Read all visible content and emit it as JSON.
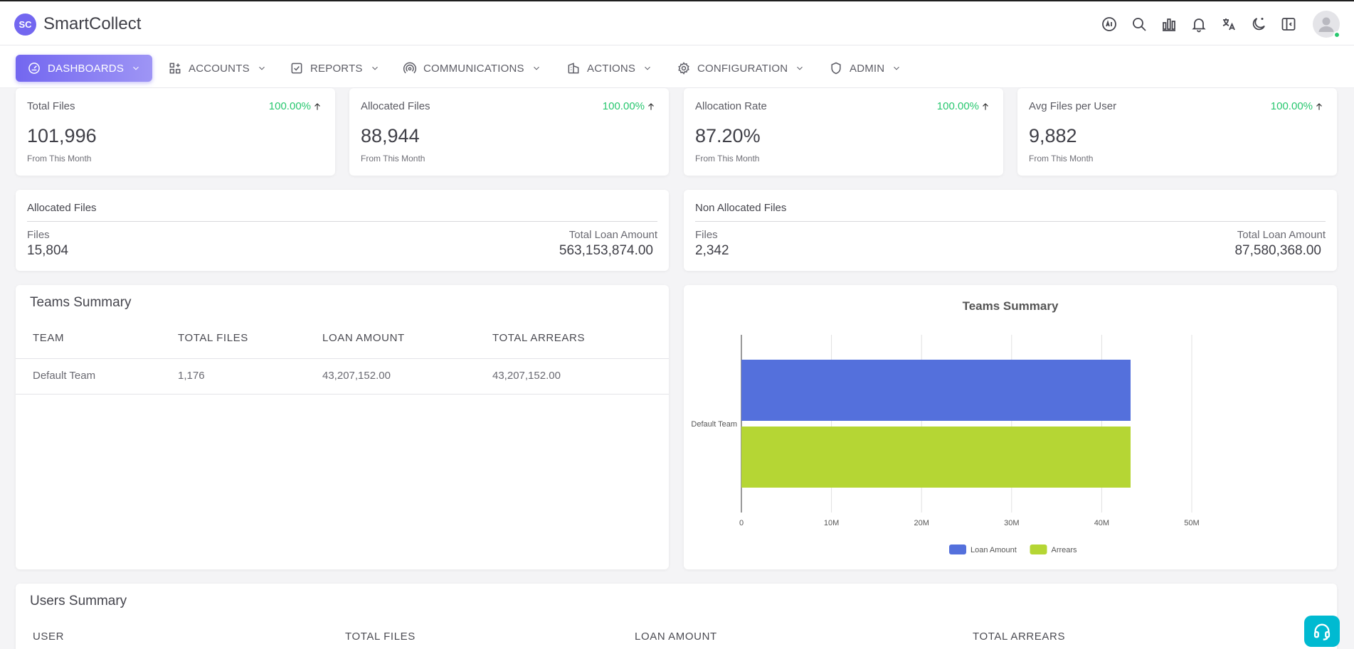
{
  "app": {
    "logo_text": "SC",
    "brand": "SmartCollect"
  },
  "header_icons": [
    "ai-icon",
    "search-icon",
    "bar-chart-icon",
    "bell-icon",
    "translate-icon",
    "moon-icon",
    "sidebar-toggle-icon"
  ],
  "nav": {
    "items": [
      {
        "label": "DASHBOARDS",
        "icon": "dashboard-icon",
        "active": true
      },
      {
        "label": "ACCOUNTS",
        "icon": "grid-icon"
      },
      {
        "label": "REPORTS",
        "icon": "checkbox-icon"
      },
      {
        "label": "COMMUNICATIONS",
        "icon": "broadcast-icon"
      },
      {
        "label": "ACTIONS",
        "icon": "building-icon"
      },
      {
        "label": "CONFIGURATION",
        "icon": "gear-icon"
      },
      {
        "label": "ADMIN",
        "icon": "shield-icon"
      }
    ]
  },
  "stats": [
    {
      "title": "Total Files",
      "pct": "100.00%",
      "value": "101,996",
      "sub": "From This Month"
    },
    {
      "title": "Allocated Files",
      "pct": "100.00%",
      "value": "88,944",
      "sub": "From This Month"
    },
    {
      "title": "Allocation Rate",
      "pct": "100.00%",
      "value": "87.20%",
      "sub": "From This Month"
    },
    {
      "title": "Avg Files per User",
      "pct": "100.00%",
      "value": "9,882",
      "sub": "From This Month"
    }
  ],
  "allocated": {
    "title": "Allocated Files",
    "files_label": "Files",
    "files": "15,804",
    "amount_label": "Total Loan Amount",
    "amount": "563,153,874.00"
  },
  "non_allocated": {
    "title": "Non Allocated Files",
    "files_label": "Files",
    "files": "2,342",
    "amount_label": "Total Loan Amount",
    "amount": "87,580,368.00"
  },
  "teams_table": {
    "title": "Teams Summary",
    "headers": [
      "TEAM",
      "TOTAL FILES",
      "LOAN AMOUNT",
      "TOTAL ARREARS"
    ],
    "rows": [
      [
        "Default Team",
        "1,176",
        "43,207,152.00",
        "43,207,152.00"
      ]
    ]
  },
  "chart_data": {
    "type": "bar",
    "orientation": "horizontal",
    "title": "Teams Summary",
    "categories": [
      "Default Team"
    ],
    "series": [
      {
        "name": "Loan Amount",
        "values": [
          43207152
        ],
        "color": "#5470dc"
      },
      {
        "name": "Arrears",
        "values": [
          43207152
        ],
        "color": "#b5d634"
      }
    ],
    "xlim": [
      0,
      50000000
    ],
    "x_ticks": [
      0,
      10000000,
      20000000,
      30000000,
      40000000,
      50000000
    ],
    "x_tick_labels": [
      "0",
      "10M",
      "20M",
      "30M",
      "40M",
      "50M"
    ],
    "legend": "bottom-center",
    "grid": true
  },
  "users_table": {
    "title": "Users Summary",
    "headers": [
      "USER",
      "TOTAL FILES",
      "LOAN AMOUNT",
      "TOTAL ARREARS"
    ]
  },
  "colors": {
    "accent": "#7367f0",
    "success": "#28c76f",
    "support": "#00bad1"
  }
}
